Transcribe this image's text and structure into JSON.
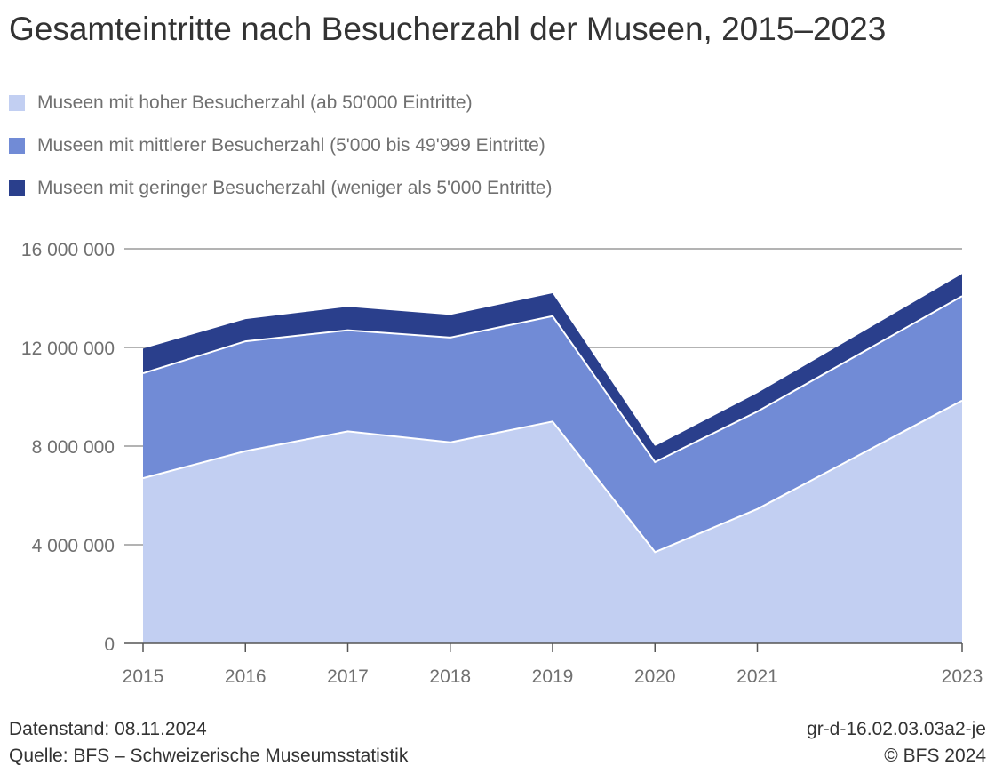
{
  "title": "Gesamteintritte nach Besucherzahl der Museen, 2015–2023",
  "legend": [
    {
      "label": "Museen mit hoher Besucherzahl (ab 50'000 Eintritte)",
      "color": "#c2cff2"
    },
    {
      "label": "Museen mit mittlerer Besucherzahl (5'000 bis 49'999 Eintritte)",
      "color": "#718bd6"
    },
    {
      "label": "Museen mit geringer Besucherzahl (weniger als 5'000 Entritte)",
      "color": "#2a3f8c"
    }
  ],
  "chart_data": {
    "type": "area",
    "stacked": true,
    "x": [
      2015,
      2016,
      2017,
      2018,
      2019,
      2020,
      2021,
      2023
    ],
    "x_tick_labels": [
      "2015",
      "2016",
      "2017",
      "2018",
      "2019",
      "2020",
      "2021",
      "2023"
    ],
    "series": [
      {
        "name": "Museen mit hoher Besucherzahl (ab 50'000 Eintritte)",
        "color": "#c2cff2",
        "values": [
          6700000,
          7800000,
          8600000,
          8150000,
          9000000,
          3700000,
          5450000,
          9850000
        ]
      },
      {
        "name": "Museen mit mittlerer Besucherzahl (5'000 bis 49'999 Eintritte)",
        "color": "#718bd6",
        "values": [
          4250000,
          4450000,
          4100000,
          4250000,
          4270000,
          3650000,
          3950000,
          4230000
        ]
      },
      {
        "name": "Museen mit geringer Besucherzahl (weniger als 5'000 Entritte)",
        "color": "#2a3f8c",
        "values": [
          1000000,
          900000,
          950000,
          920000,
          930000,
          650000,
          750000,
          900000
        ]
      }
    ],
    "ylim": [
      0,
      16000000
    ],
    "y_ticks": [
      0,
      4000000,
      8000000,
      12000000,
      16000000
    ],
    "y_tick_labels": [
      "0",
      "4 000 000",
      "8 000 000",
      "12 000 000",
      "16 000 000"
    ],
    "grid": true,
    "legend_position": "top"
  },
  "footer": {
    "left_line1": "Datenstand: 08.11.2024",
    "left_line2": "Quelle: BFS – Schweizerische Museumsstatistik",
    "right_line1": "gr-d-16.02.03.03a2-je",
    "right_line2": "© BFS 2024"
  }
}
